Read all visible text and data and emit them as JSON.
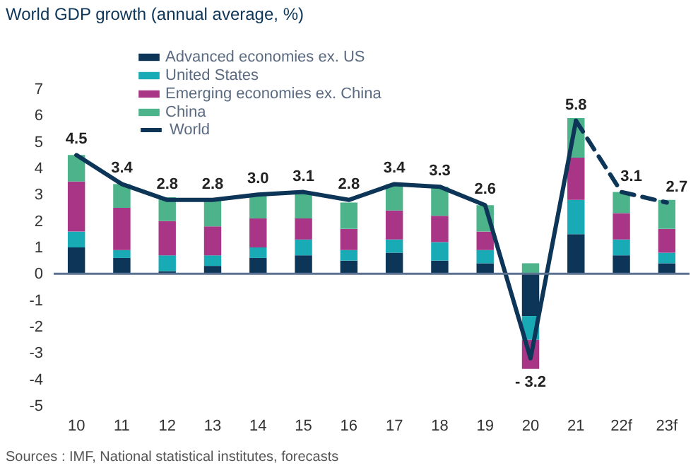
{
  "chart_data": {
    "type": "bar",
    "title": "World GDP growth (annual average, %)",
    "stacked": true,
    "categories": [
      "10",
      "11",
      "12",
      "13",
      "14",
      "15",
      "16",
      "17",
      "18",
      "19",
      "20",
      "21",
      "22f",
      "23f"
    ],
    "series": [
      {
        "name": "Advanced economies ex. US",
        "color": "#0d3558",
        "values": [
          1.0,
          0.6,
          0.1,
          0.3,
          0.6,
          0.7,
          0.5,
          0.8,
          0.5,
          0.4,
          -1.6,
          1.5,
          0.7,
          0.4
        ]
      },
      {
        "name": "United States",
        "color": "#18aab5",
        "values": [
          0.6,
          0.3,
          0.6,
          0.4,
          0.4,
          0.6,
          0.4,
          0.5,
          0.7,
          0.5,
          -0.9,
          1.3,
          0.6,
          0.4
        ]
      },
      {
        "name": "Emerging economies ex. China",
        "color": "#a83585",
        "values": [
          1.9,
          1.6,
          1.3,
          1.1,
          1.1,
          0.8,
          0.8,
          1.1,
          1.0,
          0.7,
          -1.1,
          1.6,
          1.0,
          0.9
        ]
      },
      {
        "name": "China",
        "color": "#4cb38a",
        "values": [
          1.0,
          0.9,
          0.9,
          1.0,
          0.9,
          1.0,
          1.0,
          1.0,
          1.1,
          1.0,
          0.4,
          1.5,
          0.8,
          1.1
        ]
      },
      {
        "name": "World",
        "type": "line",
        "color": "#0d3558",
        "line_style": "solid",
        "values": [
          4.5,
          3.4,
          2.8,
          2.8,
          3.0,
          3.1,
          2.8,
          3.4,
          3.3,
          2.6,
          -3.2,
          5.8,
          null,
          null
        ],
        "value_labels": [
          "4.5",
          "3.4",
          "2.8",
          "2.8",
          "3.0",
          "3.1",
          "2.8",
          "3.4",
          "3.3",
          "2.6",
          "- 3.2",
          "5.8",
          null,
          null
        ]
      },
      {
        "type": "line",
        "color": "#0d3558",
        "line_style": "dashed",
        "values": [
          null,
          null,
          null,
          null,
          null,
          null,
          null,
          null,
          null,
          null,
          null,
          5.8,
          3.1,
          2.7
        ],
        "value_labels": [
          null,
          null,
          null,
          null,
          null,
          null,
          null,
          null,
          null,
          null,
          null,
          null,
          "3.1",
          "2.7"
        ]
      }
    ],
    "ref_lines": [
      {
        "axis": "y",
        "value": 0,
        "color": "#5b7390"
      }
    ],
    "ylim": [
      -5,
      7
    ],
    "yticks": [
      -5,
      -4,
      -3,
      -2,
      -1,
      0,
      1,
      2,
      3,
      4,
      5,
      6,
      7
    ],
    "grid": false,
    "legend": "top",
    "annotations": [
      "Sources : IMF, National statistical institutes, forecasts"
    ]
  }
}
